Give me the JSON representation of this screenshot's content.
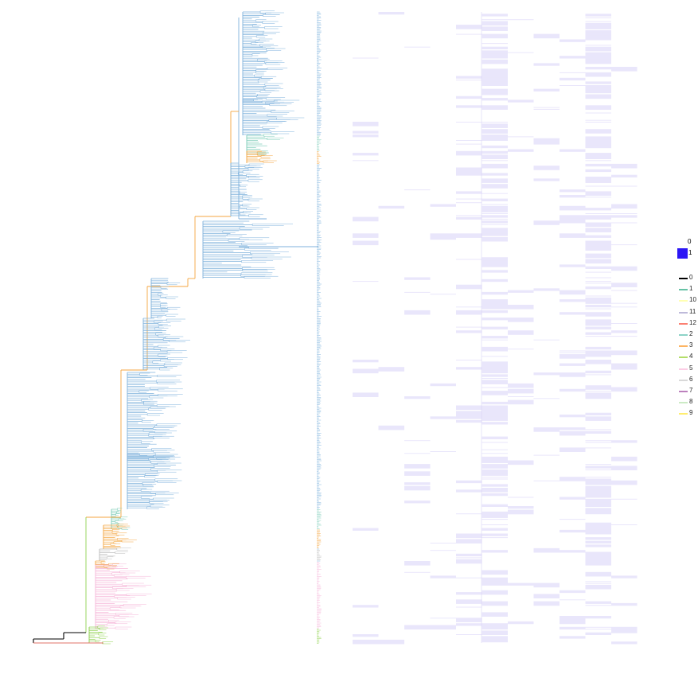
{
  "heatmap": {
    "columns": [
      "",
      "",
      "",
      "",
      "",
      "",
      "",
      "",
      "",
      "",
      ""
    ],
    "presence_color": "#3a1cf0",
    "light_color": "#e9e6fb"
  },
  "heatmap_legend": {
    "items": [
      {
        "label": "0",
        "color": "#ffffff"
      },
      {
        "label": "1",
        "color": "#2b16f5"
      }
    ]
  },
  "clade_legend": {
    "items": [
      {
        "label": "0",
        "color": "#000000"
      },
      {
        "label": "1",
        "color": "#66c2a5"
      },
      {
        "label": "10",
        "color": "#ffffb3"
      },
      {
        "label": "11",
        "color": "#bebada"
      },
      {
        "label": "12",
        "color": "#fb8072"
      },
      {
        "label": "2",
        "color": "#8dd3c7"
      },
      {
        "label": "3",
        "color": "#fdb462"
      },
      {
        "label": "4",
        "color": "#b3de69"
      },
      {
        "label": "5",
        "color": "#fccde5"
      },
      {
        "label": "6",
        "color": "#d9d9d9"
      },
      {
        "label": "7",
        "color": "#bc80bd"
      },
      {
        "label": "8",
        "color": "#ccebc5"
      },
      {
        "label": "9",
        "color": "#ffed6f"
      }
    ]
  },
  "tree": {
    "branch_color": "#7fb2dc",
    "backbone_color": "#f4a640",
    "clade_colors": {
      "blue": "#7fb2dc",
      "orange": "#f4a640",
      "teal": "#7ecdb8",
      "pink": "#f6b6d8",
      "green": "#8fd14f",
      "grey": "#bdbdbd",
      "red": "#e0736a",
      "black": "#000000"
    }
  }
}
